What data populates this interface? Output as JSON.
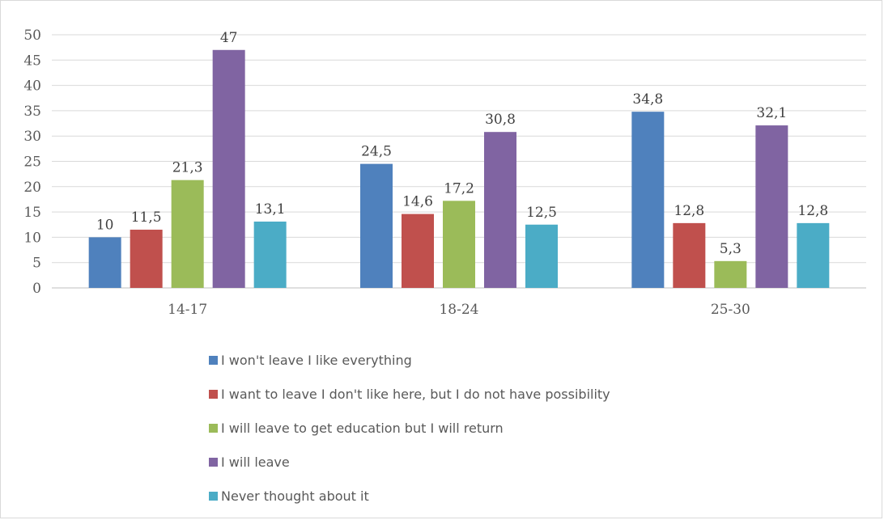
{
  "chart_data": {
    "type": "bar",
    "categories": [
      "14-17",
      "18-24",
      "25-30"
    ],
    "series": [
      {
        "name": "I won't leave I like everything",
        "color": "#4f81bd",
        "values": [
          10,
          24.5,
          34.8
        ],
        "labels": [
          "10",
          "24,5",
          "34,8"
        ]
      },
      {
        "name": "I want to leave I don't like here, but I do not have possibility",
        "color": "#c0504d",
        "values": [
          11.5,
          14.6,
          12.8
        ],
        "labels": [
          "11,5",
          "14,6",
          "12,8"
        ]
      },
      {
        "name": "I will leave to get education but I will return",
        "color": "#9bbb59",
        "values": [
          21.3,
          17.2,
          5.3
        ],
        "labels": [
          "21,3",
          "17,2",
          "5,3"
        ]
      },
      {
        "name": "I will leave",
        "color": "#8064a2",
        "values": [
          47,
          30.8,
          32.1
        ],
        "labels": [
          "47",
          "30,8",
          "32,1"
        ]
      },
      {
        "name": "Never thought about it",
        "color": "#4bacc6",
        "values": [
          13.1,
          12.5,
          12.8
        ],
        "labels": [
          "13,1",
          "12,5",
          "12,8"
        ]
      }
    ],
    "ylim": [
      0,
      50
    ],
    "yticks": [
      0,
      5,
      10,
      15,
      20,
      25,
      30,
      35,
      40,
      45,
      50
    ],
    "grid": true,
    "legend_position": "bottom"
  }
}
